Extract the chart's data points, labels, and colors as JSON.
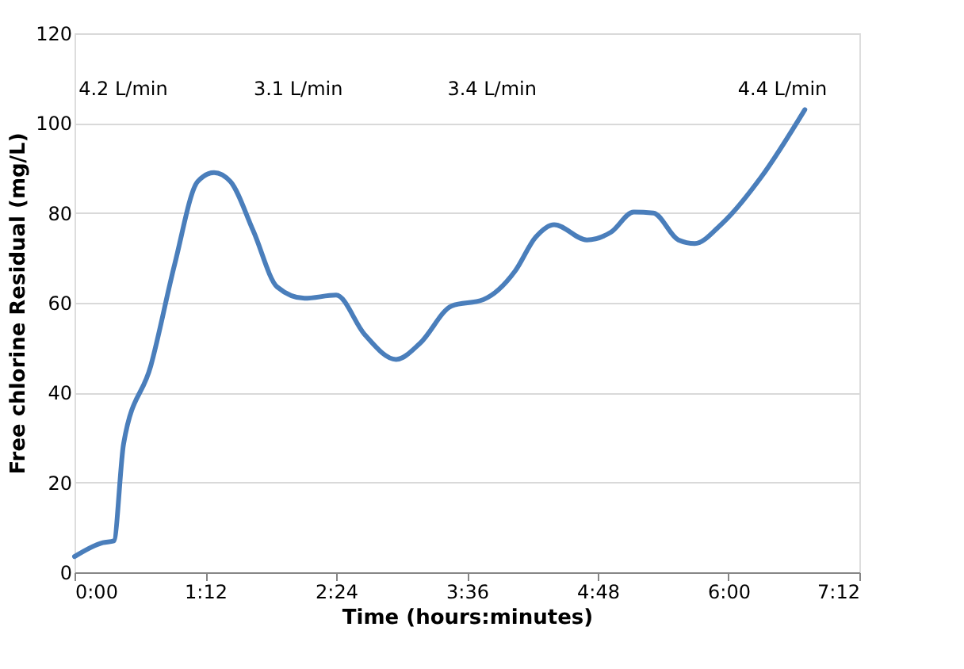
{
  "chart_data": {
    "type": "line",
    "xlabel": "Time (hours:minutes)",
    "ylabel": "Free chlorine Residual (mg/L)",
    "x": [
      0,
      0.26,
      0.36,
      0.45,
      0.7,
      0.92,
      1.13,
      1.28,
      1.43,
      1.64,
      1.86,
      2.11,
      2.4,
      2.66,
      2.95,
      3.17,
      3.46,
      3.75,
      4.04,
      4.23,
      4.4,
      4.7,
      4.92,
      5.13,
      5.31,
      5.54,
      5.69,
      5.93,
      6.3,
      6.7
    ],
    "series": [
      {
        "color": "#4a7ebb",
        "values": [
          3.5,
          6.6,
          7,
          28.6,
          46,
          68.7,
          87,
          89,
          87,
          76,
          63.5,
          61,
          61.7,
          53,
          47.4,
          51,
          59.3,
          60.7,
          67,
          74.6,
          77.4,
          74,
          75.7,
          80.2,
          80,
          74,
          73.2,
          77.4,
          88,
          103
        ]
      }
    ],
    "xlim": [
      0,
      7.2
    ],
    "ylim": [
      0,
      120
    ],
    "xticks": [
      {
        "value": 0,
        "label": "0:00"
      },
      {
        "value": 1.2,
        "label": "1:12"
      },
      {
        "value": 2.4,
        "label": "2:24"
      },
      {
        "value": 3.6,
        "label": "3:36"
      },
      {
        "value": 4.8,
        "label": "4:48"
      },
      {
        "value": 6.0,
        "label": "6:00"
      },
      {
        "value": 7.2,
        "label": "7:12"
      }
    ],
    "yticks": [
      0,
      20,
      40,
      60,
      80,
      100,
      120
    ],
    "annotations": [
      "4.2 L/min",
      "3.1 L/min",
      "3.4 L/min",
      "4.4 L/min"
    ],
    "grid": "y",
    "marker": "none",
    "line_style": "solid"
  }
}
